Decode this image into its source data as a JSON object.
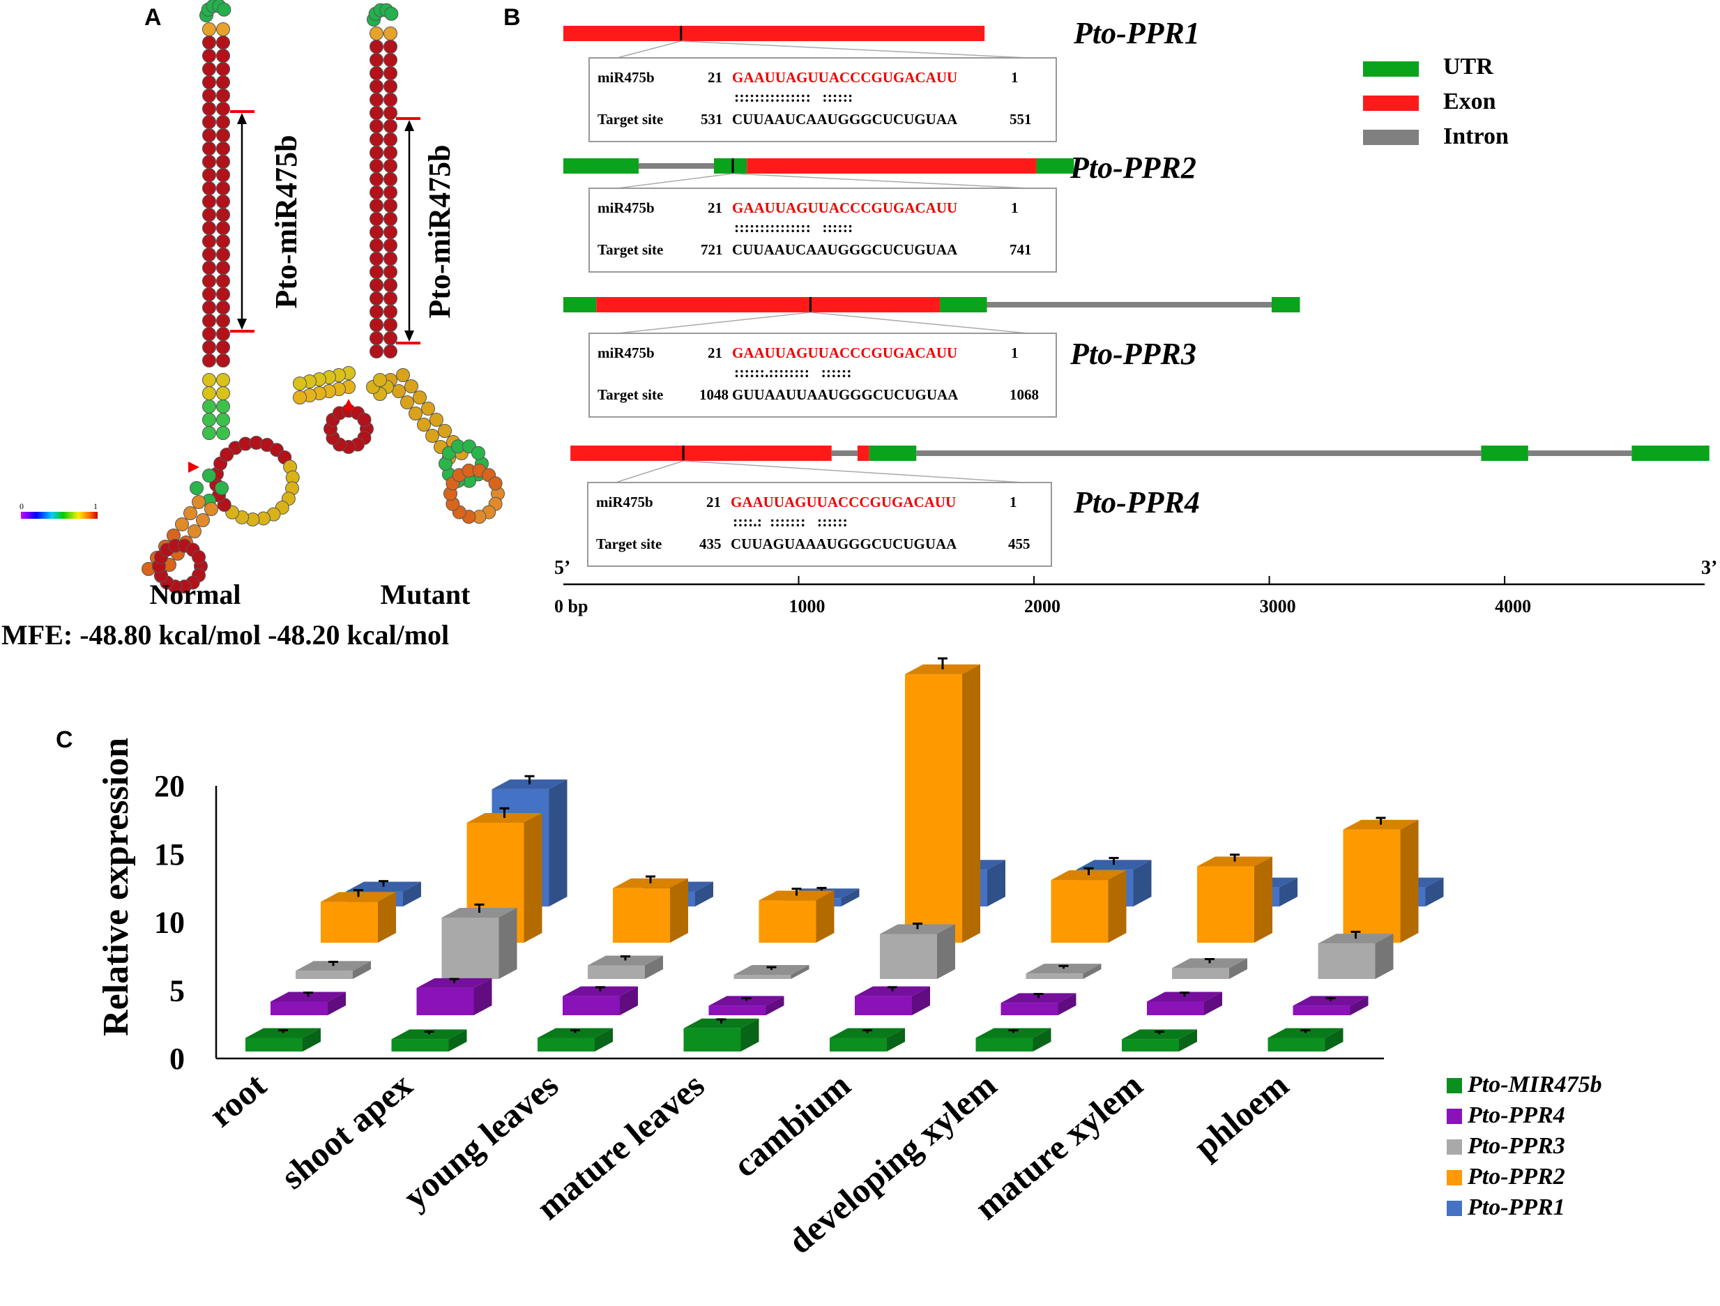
{
  "panelA": {
    "label": "A",
    "normal_label": "Normal",
    "mutant_label": "Mutant",
    "mir_label": "Pto-miR475b",
    "mfe_text": "MFE: -48.80 kcal/mol -48.20 kcal/mol",
    "scale_min": "0",
    "scale_max": "1"
  },
  "panelB": {
    "label": "B",
    "legend": [
      {
        "name": "UTR",
        "color": "#0aa31c"
      },
      {
        "name": "Exon",
        "color": "#ff1a1a"
      },
      {
        "name": "Intron",
        "color": "#808080"
      }
    ],
    "axis": {
      "five_prime": "5’",
      "three_prime": "3’",
      "ticks": [
        {
          "value": 0,
          "label": "0 bp"
        },
        {
          "value": 1000,
          "label": "1000"
        },
        {
          "value": 2000,
          "label": "2000"
        },
        {
          "value": 3000,
          "label": "3000"
        },
        {
          "value": 4000,
          "label": "4000"
        }
      ],
      "max": 4850
    },
    "genes": [
      {
        "name": "Pto-PPR1",
        "site": 500,
        "segments": [
          {
            "type": "Exon",
            "start": 0,
            "end": 1790
          }
        ],
        "align": {
          "mir_label": "miR475b",
          "mir_start": "21",
          "mir_seq": "GAAUUAGUUACCCGUGACAUU",
          "mir_end": "1",
          "match": ":::::::::::::::   ::::::",
          "target_label": "Target site",
          "target_start": "531",
          "target_seq": "CUUAAUCAAUGGGCUCUGUAA",
          "target_end": "551"
        }
      },
      {
        "name": "Pto-PPR2",
        "site": 720,
        "segments": [
          {
            "type": "UTR",
            "start": 0,
            "end": 320
          },
          {
            "type": "Intron",
            "start": 320,
            "end": 640
          },
          {
            "type": "UTR",
            "start": 640,
            "end": 780
          },
          {
            "type": "Exon",
            "start": 780,
            "end": 2010
          },
          {
            "type": "UTR",
            "start": 2010,
            "end": 2170
          }
        ],
        "align": {
          "mir_label": "miR475b",
          "mir_start": "21",
          "mir_seq": "GAAUUAGUUACCCGUGACAUU",
          "mir_end": "1",
          "match": ":::::::::::::::   ::::::",
          "target_label": "Target site",
          "target_start": "721",
          "target_seq": "CUUAAUCAAUGGGCUCUGUAA",
          "target_end": "741"
        }
      },
      {
        "name": "Pto-PPR3",
        "site": 1050,
        "segments": [
          {
            "type": "UTR",
            "start": 0,
            "end": 140
          },
          {
            "type": "Exon",
            "start": 140,
            "end": 1600
          },
          {
            "type": "UTR",
            "start": 1600,
            "end": 1800
          },
          {
            "type": "Intron",
            "start": 1800,
            "end": 3010
          },
          {
            "type": "UTR",
            "start": 3010,
            "end": 3130
          }
        ],
        "align": {
          "mir_label": "miR475b",
          "mir_start": "21",
          "mir_seq": "GAAUUAGUUACCCGUGACAUU",
          "mir_end": "1",
          "match": "::::::.::::::::   ::::::",
          "target_label": "Target site",
          "target_start": "1048",
          "target_seq": "GUUAAUUAAUGGGCUCUGUAA",
          "target_end": "1068"
        }
      },
      {
        "name": "Pto-PPR4",
        "site": 510,
        "segments": [
          {
            "type": "Exon",
            "start": 30,
            "end": 1140
          },
          {
            "type": "Intron",
            "start": 1140,
            "end": 1250
          },
          {
            "type": "Exon",
            "start": 1250,
            "end": 1300
          },
          {
            "type": "UTR",
            "start": 1300,
            "end": 1500
          },
          {
            "type": "Intron",
            "start": 1500,
            "end": 3900
          },
          {
            "type": "UTR",
            "start": 3900,
            "end": 4100
          },
          {
            "type": "Intron",
            "start": 4100,
            "end": 4540
          },
          {
            "type": "UTR",
            "start": 4540,
            "end": 4870
          }
        ],
        "align": {
          "mir_label": "miR475b",
          "mir_start": "21",
          "mir_seq": "GAAUUAGUUACCCGUGACAUU",
          "mir_end": "1",
          "match": "::::.:  :::::::   ::::::",
          "target_label": "Target site",
          "target_start": "435",
          "target_seq": "CUUAGUAAAUGGGCUCUGUAA",
          "target_end": "455"
        }
      }
    ]
  },
  "panelC": {
    "label": "C"
  },
  "chart_data": {
    "type": "bar",
    "subtype": "3d-grouped",
    "title": "",
    "xlabel": "",
    "ylabel": "Relative expression",
    "ylim": [
      0,
      20
    ],
    "yticks": [
      0,
      5,
      10,
      15,
      20
    ],
    "categories": [
      "root",
      "shoot apex",
      "young leaves",
      "mature leaves",
      "cambium",
      "developing xylem",
      "mature xylem",
      "phloem"
    ],
    "series": [
      {
        "name": "Pto-MIR475b",
        "color": "#0b8f1f",
        "values": [
          1.0,
          0.9,
          1.0,
          1.7,
          1.0,
          1.0,
          0.9,
          1.0
        ],
        "errors": [
          0.2,
          0.2,
          0.2,
          0.3,
          0.2,
          0.2,
          0.2,
          0.2
        ]
      },
      {
        "name": "Pto-PPR4",
        "color": "#8a12b8",
        "values": [
          1.0,
          2.0,
          1.4,
          0.7,
          1.4,
          0.9,
          1.0,
          0.7
        ],
        "errors": [
          0.3,
          0.3,
          0.3,
          0.2,
          0.3,
          0.3,
          0.3,
          0.2
        ]
      },
      {
        "name": "Pto-PPR3",
        "color": "#a9a9a9",
        "values": [
          0.6,
          4.5,
          1.0,
          0.3,
          3.3,
          0.4,
          0.8,
          2.6
        ],
        "errors": [
          0.3,
          0.6,
          0.3,
          0.2,
          0.4,
          0.2,
          0.3,
          0.5
        ]
      },
      {
        "name": "Pto-PPR2",
        "color": "#ff9900",
        "values": [
          3.0,
          8.8,
          4.0,
          3.1,
          19.7,
          4.6,
          5.6,
          8.3
        ],
        "errors": [
          0.5,
          0.7,
          0.5,
          0.5,
          0.8,
          0.5,
          0.5,
          0.5
        ]
      },
      {
        "name": "Pto-PPR1",
        "color": "#4472c4",
        "values": [
          1.1,
          8.6,
          1.1,
          0.6,
          2.7,
          2.7,
          1.4,
          1.4
        ],
        "errors": [
          0.4,
          0.6,
          0.4,
          0.4,
          0.5,
          0.5,
          0.5,
          0.4
        ]
      }
    ],
    "legend_position": "bottom-right"
  }
}
